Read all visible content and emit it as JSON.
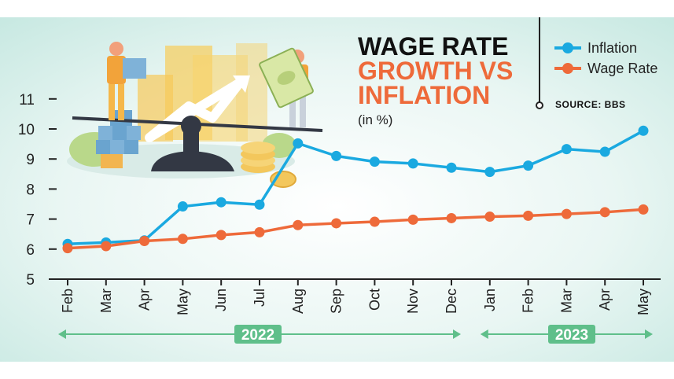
{
  "title_line1": "WAGE RATE",
  "title_line2": "GROWTH VS",
  "title_line3": "INFLATION",
  "subtitle": "(in %)",
  "source": "SOURCE: BBS",
  "colors": {
    "inflation": "#1aa9e0",
    "wage": "#ee6a3a",
    "year_band": "#5fbf8a",
    "axis": "#222222"
  },
  "chart_data": {
    "type": "line",
    "categories": [
      "Feb",
      "Mar",
      "Apr",
      "May",
      "Jun",
      "Jul",
      "Aug",
      "Sep",
      "Oct",
      "Nov",
      "Dec",
      "Jan",
      "Feb",
      "Mar",
      "Apr",
      "May"
    ],
    "series": [
      {
        "name": "Inflation",
        "values": [
          6.17,
          6.22,
          6.29,
          7.42,
          7.56,
          7.48,
          9.52,
          9.1,
          8.91,
          8.85,
          8.71,
          8.57,
          8.78,
          9.33,
          9.24,
          9.94
        ]
      },
      {
        "name": "Wage Rate",
        "values": [
          6.03,
          6.1,
          6.27,
          6.34,
          6.47,
          6.56,
          6.8,
          6.86,
          6.91,
          6.98,
          7.03,
          7.08,
          7.11,
          7.17,
          7.23,
          7.32
        ]
      }
    ],
    "yticks": [
      5,
      6,
      7,
      8,
      9,
      10,
      11
    ],
    "ylim": [
      5,
      11.5
    ],
    "years": [
      {
        "label": "2022",
        "from": 0,
        "to": 10
      },
      {
        "label": "2023",
        "from": 11,
        "to": 15
      }
    ],
    "legend_position": "top-right"
  }
}
